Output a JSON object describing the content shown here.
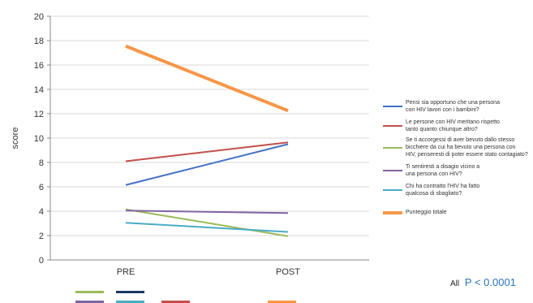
{
  "chart_data": {
    "type": "line",
    "categories": [
      "PRE",
      "POST"
    ],
    "ylabel": "score",
    "ylim": [
      0,
      20
    ],
    "yticks": [
      0,
      2,
      4,
      6,
      8,
      10,
      12,
      14,
      16,
      18,
      20
    ],
    "grid": true,
    "legend_position": "right",
    "series": [
      {
        "name": "Pensi sia opportuno che una persona\ncon HIV lavori con i bambini?",
        "values": [
          6.15,
          9.5
        ],
        "color": "#4472c4"
      },
      {
        "name": "Le persone con HIV meritano rispetto\ntanto quanto chiunque altro?",
        "values": [
          8.1,
          9.65
        ],
        "color": "#c0504d"
      },
      {
        "name": "Se ti accorgessi di aver bevuto dallo stesso\nbicchiere da cui ha bevuto una persona con\nHIV, penseresti di poter essere stato contagiato?",
        "values": [
          4.15,
          1.95
        ],
        "color": "#9bbb59"
      },
      {
        "name": "Ti sentiresti a disagio vicino a\nuna persona con HIV?",
        "values": [
          4.05,
          3.85
        ],
        "color": "#8064a2"
      },
      {
        "name": "Chi ha contratto l'HIV ha fatto\nqualcosa di sbagliato?",
        "values": [
          3.05,
          2.3
        ],
        "color": "#4bacc6"
      },
      {
        "name": "Punteggio totale",
        "values": [
          17.55,
          12.25
        ],
        "color": "#f79646",
        "thick": true
      }
    ]
  },
  "annotation": {
    "prefix": "All",
    "text": "P < 0.0001"
  }
}
